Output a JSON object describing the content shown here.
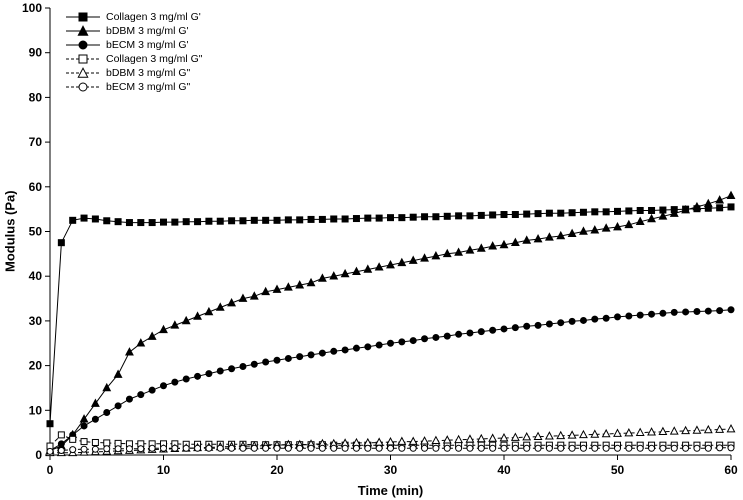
{
  "chart_data": {
    "type": "line",
    "xlabel": "Time (min)",
    "ylabel": "Modulus (Pa)",
    "xlim": [
      0,
      60
    ],
    "ylim": [
      0,
      100
    ],
    "xticks": [
      0,
      10,
      20,
      30,
      40,
      50,
      60
    ],
    "yticks": [
      0,
      10,
      20,
      30,
      40,
      50,
      60,
      70,
      80,
      90,
      100
    ],
    "grid": false,
    "legend_position": "top-left",
    "axis_color": "#000000",
    "x": [
      0,
      1,
      2,
      3,
      4,
      5,
      6,
      7,
      8,
      9,
      10,
      11,
      12,
      13,
      14,
      15,
      16,
      17,
      18,
      19,
      20,
      21,
      22,
      23,
      24,
      25,
      26,
      27,
      28,
      29,
      30,
      31,
      32,
      33,
      34,
      35,
      36,
      37,
      38,
      39,
      40,
      41,
      42,
      43,
      44,
      45,
      46,
      47,
      48,
      49,
      50,
      51,
      52,
      53,
      54,
      55,
      56,
      57,
      58,
      59,
      60
    ],
    "series": [
      {
        "name": "Collagen 3 mg/ml G'",
        "marker": "square",
        "fill": "filled",
        "line": "solid",
        "y": [
          7,
          47.5,
          52.5,
          53,
          52.8,
          52.4,
          52.2,
          52,
          52,
          52,
          52.1,
          52.1,
          52.2,
          52.2,
          52.3,
          52.3,
          52.4,
          52.4,
          52.5,
          52.5,
          52.5,
          52.6,
          52.6,
          52.7,
          52.7,
          52.8,
          52.8,
          52.9,
          53,
          53,
          53.1,
          53.1,
          53.2,
          53.3,
          53.3,
          53.4,
          53.5,
          53.5,
          53.6,
          53.7,
          53.8,
          53.8,
          53.9,
          54,
          54.1,
          54.1,
          54.2,
          54.3,
          54.4,
          54.4,
          54.5,
          54.6,
          54.7,
          54.7,
          54.8,
          54.9,
          55,
          55.1,
          55.2,
          55.3,
          55.5
        ]
      },
      {
        "name": "bDBM 3 mg/ml G'",
        "marker": "triangle",
        "fill": "filled",
        "line": "solid",
        "y": [
          1,
          2,
          4.5,
          8,
          11.5,
          15,
          18,
          23,
          25,
          26.5,
          28,
          29,
          30,
          31,
          32,
          33,
          34,
          35,
          35.5,
          36.5,
          37,
          37.5,
          38,
          38.5,
          39.5,
          40,
          40.5,
          41,
          41.5,
          42,
          42.5,
          43,
          43.5,
          44,
          44.5,
          45,
          45.3,
          45.8,
          46.2,
          46.7,
          47,
          47.5,
          48,
          48.3,
          48.7,
          49,
          49.5,
          50,
          50.3,
          50.7,
          51,
          51.5,
          52.2,
          52.8,
          53.4,
          54,
          54.8,
          55.5,
          56.2,
          57,
          58
        ]
      },
      {
        "name": "bECM 3 mg/ml G'",
        "marker": "circle",
        "fill": "filled",
        "line": "solid",
        "y": [
          1,
          2.5,
          4.5,
          6.5,
          8,
          9.5,
          11,
          12.5,
          13.5,
          14.5,
          15.5,
          16.3,
          17,
          17.6,
          18.2,
          18.8,
          19.3,
          19.8,
          20.3,
          20.8,
          21.2,
          21.6,
          22,
          22.4,
          22.8,
          23.2,
          23.5,
          23.9,
          24.2,
          24.6,
          25,
          25.3,
          25.6,
          26,
          26.3,
          26.6,
          27,
          27.3,
          27.6,
          27.9,
          28.2,
          28.5,
          28.8,
          29,
          29.3,
          29.6,
          29.9,
          30.1,
          30.4,
          30.6,
          30.9,
          31.1,
          31.3,
          31.5,
          31.7,
          31.9,
          32,
          32.1,
          32.2,
          32.3,
          32.5
        ]
      },
      {
        "name": "Collagen 3 mg/ml G\"",
        "marker": "square",
        "fill": "open",
        "line": "dashed",
        "y": [
          2,
          4.5,
          3.5,
          3,
          2.8,
          2.7,
          2.6,
          2.5,
          2.5,
          2.5,
          2.5,
          2.5,
          2.4,
          2.4,
          2.4,
          2.4,
          2.4,
          2.4,
          2.3,
          2.3,
          2.3,
          2.3,
          2.3,
          2.3,
          2.3,
          2.2,
          2.2,
          2.2,
          2.2,
          2.2,
          2.2,
          2.2,
          2.2,
          2.2,
          2.2,
          2.2,
          2.2,
          2.2,
          2.2,
          2.2,
          2.2,
          2.2,
          2.2,
          2.2,
          2.2,
          2.2,
          2.2,
          2.2,
          2.2,
          2.2,
          2.2,
          2.2,
          2.2,
          2.2,
          2.2,
          2.2,
          2.2,
          2.2,
          2.2,
          2.2,
          2.2
        ]
      },
      {
        "name": "bDBM 3 mg/ml G\"",
        "marker": "triangle",
        "fill": "open",
        "line": "dashed",
        "y": [
          0.5,
          0.5,
          0.5,
          0.6,
          0.7,
          0.8,
          0.9,
          1,
          1.1,
          1.2,
          1.3,
          1.4,
          1.5,
          1.6,
          1.7,
          1.8,
          1.9,
          2,
          2,
          2.1,
          2.2,
          2.3,
          2.3,
          2.4,
          2.5,
          2.5,
          2.6,
          2.7,
          2.7,
          2.8,
          2.9,
          3,
          3,
          3.1,
          3.2,
          3.3,
          3.4,
          3.5,
          3.6,
          3.7,
          3.8,
          3.9,
          4,
          4.1,
          4.2,
          4.3,
          4.4,
          4.5,
          4.6,
          4.7,
          4.8,
          4.9,
          5,
          5.1,
          5.2,
          5.3,
          5.4,
          5.5,
          5.6,
          5.7,
          5.8
        ]
      },
      {
        "name": "bECM 3 mg/ml G\"",
        "marker": "circle",
        "fill": "open",
        "line": "dashed",
        "y": [
          0.8,
          1,
          1.2,
          1.3,
          1.3,
          1.4,
          1.4,
          1.4,
          1.4,
          1.5,
          1.5,
          1.5,
          1.5,
          1.5,
          1.5,
          1.5,
          1.5,
          1.5,
          1.5,
          1.5,
          1.5,
          1.5,
          1.5,
          1.5,
          1.5,
          1.5,
          1.5,
          1.5,
          1.5,
          1.5,
          1.5,
          1.5,
          1.5,
          1.5,
          1.5,
          1.5,
          1.5,
          1.5,
          1.5,
          1.5,
          1.5,
          1.5,
          1.5,
          1.5,
          1.5,
          1.5,
          1.5,
          1.5,
          1.5,
          1.5,
          1.5,
          1.5,
          1.5,
          1.5,
          1.5,
          1.5,
          1.5,
          1.5,
          1.5,
          1.6,
          1.6
        ]
      }
    ]
  }
}
